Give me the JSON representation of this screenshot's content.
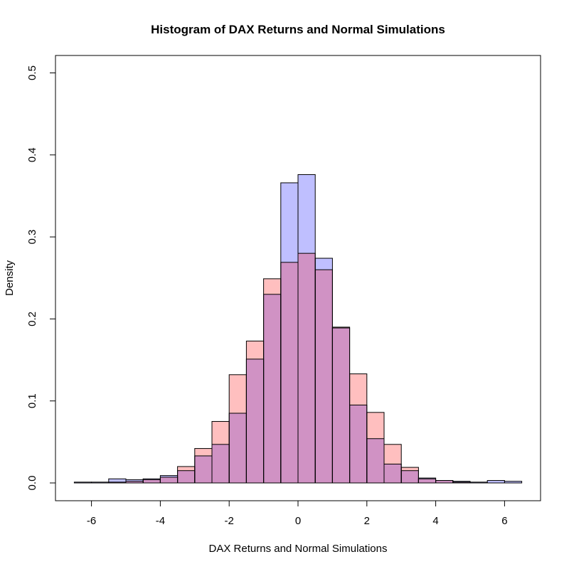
{
  "chart_data": {
    "type": "bar",
    "title": "Histogram of DAX Returns and Normal Simulations",
    "xlabel": "DAX Returns and Normal Simulations",
    "ylabel": "Density",
    "xlim": [
      -6.5,
      6.5
    ],
    "ylim": [
      0,
      0.5
    ],
    "xticks": [
      -6,
      -4,
      -2,
      0,
      2,
      4,
      6
    ],
    "yticks": [
      0.0,
      0.1,
      0.2,
      0.3,
      0.4,
      0.5
    ],
    "ytick_labels": [
      "0.0",
      "0.1",
      "0.2",
      "0.3",
      "0.4",
      "0.5"
    ],
    "bin_edges": [
      -6.5,
      -6.0,
      -5.5,
      -5.0,
      -4.5,
      -4.0,
      -3.5,
      -3.0,
      -2.5,
      -2.0,
      -1.5,
      -1.0,
      -0.5,
      0.0,
      0.5,
      1.0,
      1.5,
      2.0,
      2.5,
      3.0,
      3.5,
      4.0,
      4.5,
      5.0,
      5.5,
      6.0,
      6.5
    ],
    "grid": false,
    "series": [
      {
        "color": "#bfbfff",
        "values": [
          0.001,
          0.001,
          0.005,
          0.004,
          0.005,
          0.009,
          0.015,
          0.033,
          0.047,
          0.085,
          0.151,
          0.23,
          0.366,
          0.376,
          0.274,
          0.189,
          0.095,
          0.054,
          0.023,
          0.015,
          0.006,
          0.003,
          0.002,
          0.001,
          0.003,
          0.002
        ]
      },
      {
        "color": "#ffbfbf",
        "values": [
          0.0,
          0.0,
          0.001,
          0.002,
          0.004,
          0.007,
          0.02,
          0.042,
          0.075,
          0.132,
          0.173,
          0.249,
          0.269,
          0.28,
          0.26,
          0.19,
          0.133,
          0.086,
          0.047,
          0.019,
          0.005,
          0.003,
          0.001,
          0.0,
          0.0,
          0.0
        ]
      }
    ],
    "overlap_color": "#d092c4"
  }
}
